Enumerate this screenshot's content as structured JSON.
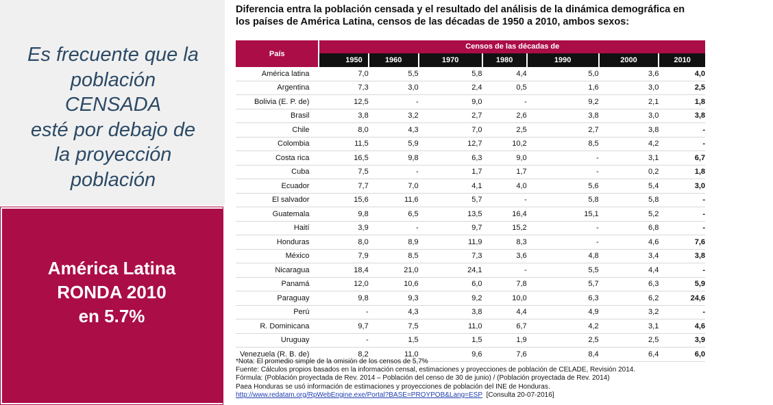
{
  "left_panel": {
    "quote_lines": [
      "Es frecuente que la",
      "población",
      "CENSADA",
      "esté por debajo de",
      "la proyección",
      "población"
    ],
    "callout_lines": [
      "América  Latina",
      "RONDA 2010",
      "en 5.7%"
    ]
  },
  "title_lines": [
    "Diferencia entra la población censada y el resultado del análisis de la dinámica demográfica en",
    "los países de América Latina, censos de las décadas de 1950 a 2010, ambos sexos:"
  ],
  "table": {
    "country_header": "País",
    "span_header": "Censos de las décadas de",
    "years": [
      "1950",
      "1960",
      "1970",
      "1980",
      "1990",
      "2000",
      "2010"
    ],
    "rows": [
      {
        "country": "América latina",
        "values": [
          "7,0",
          "5,5",
          "5,8",
          "4,4",
          "5,0",
          "3,6",
          "4,0"
        ]
      },
      {
        "country": "Argentina",
        "values": [
          "7,3",
          "3,0",
          "2,4",
          "0,5",
          "1,6",
          "3,0",
          "2,5"
        ]
      },
      {
        "country": "Bolivia   (E. P. de)",
        "values": [
          "12,5",
          "-",
          "9,0",
          "-",
          "9,2",
          "2,1",
          "1,8"
        ]
      },
      {
        "country": "Brasil",
        "values": [
          "3,8",
          "3,2",
          "2,7",
          "2,6",
          "3,8",
          "3,0",
          "3,8"
        ]
      },
      {
        "country": "Chile",
        "values": [
          "8,0",
          "4,3",
          "7,0",
          "2,5",
          "2,7",
          "3,8",
          "-"
        ]
      },
      {
        "country": "Colombia",
        "values": [
          "11,5",
          "5,9",
          "12,7",
          "10,2",
          "8,5",
          "4,2",
          "-"
        ]
      },
      {
        "country": "Costa rica",
        "values": [
          "16,5",
          "9,8",
          "6,3",
          "9,0",
          "-",
          "3,1",
          "6,7"
        ]
      },
      {
        "country": "Cuba",
        "values": [
          "7,5",
          "-",
          "1,7",
          "1,7",
          "-",
          "0,2",
          "1,8"
        ]
      },
      {
        "country": "Ecuador",
        "values": [
          "7,7",
          "7,0",
          "4,1",
          "4,0",
          "5,6",
          "5,4",
          "3,0"
        ]
      },
      {
        "country": "El salvador",
        "values": [
          "15,6",
          "11,6",
          "5,7",
          "-",
          "5,8",
          "5,8",
          "-"
        ]
      },
      {
        "country": "Guatemala",
        "values": [
          "9,8",
          "6,5",
          "13,5",
          "16,4",
          "15,1",
          "5,2",
          "-"
        ]
      },
      {
        "country": "Haití",
        "values": [
          "3,9",
          "-",
          "9,7",
          "15,2",
          "-",
          "6,8",
          "-"
        ]
      },
      {
        "country": "Honduras",
        "values": [
          "8,0",
          "8,9",
          "11,9",
          "8,3",
          "-",
          "4,6",
          "7,6"
        ]
      },
      {
        "country": "México",
        "values": [
          "7,9",
          "8,5",
          "7,3",
          "3,6",
          "4,8",
          "3,4",
          "3,8"
        ]
      },
      {
        "country": "Nicaragua",
        "values": [
          "18,4",
          "21,0",
          "24,1",
          "-",
          "5,5",
          "4,4",
          "-"
        ]
      },
      {
        "country": "Panamá",
        "values": [
          "12,0",
          "10,6",
          "6,0",
          "7,8",
          "5,7",
          "6,3",
          "5,9"
        ]
      },
      {
        "country": "Paraguay",
        "values": [
          "9,8",
          "9,3",
          "9,2",
          "10,0",
          "6,3",
          "6,2",
          "24,6"
        ]
      },
      {
        "country": "Perú",
        "values": [
          "-",
          "4,3",
          "3,8",
          "4,4",
          "4,9",
          "3,2",
          "-"
        ]
      },
      {
        "country": "R. Dominicana",
        "values": [
          "9,7",
          "7,5",
          "11,0",
          "6,7",
          "4,2",
          "3,1",
          "4,6"
        ]
      },
      {
        "country": "Uruguay",
        "values": [
          "-",
          "1,5",
          "1,5",
          "1,9",
          "2,5",
          "2,5",
          "3,9"
        ]
      },
      {
        "country": "Venezuela (R. B. de)",
        "values": [
          "8,2",
          "11,0",
          "9,6",
          "7,6",
          "8,4",
          "6,4",
          "6,0"
        ]
      }
    ]
  },
  "notes": {
    "nota": "*Nota: El promedio simple de la omisión de los censos de 5,7%",
    "fuente": "Fuente: Cálculos propios basados en la información censal, estimaciones y proyecciones de población de CELADE, Revisión 2014.",
    "formula": "Fórmula: (Población proyectada de Rev. 2014 – Población del censo de 30 de junio) / (Población proyectada de Rev. 2014)",
    "honduras": "Paea Honduras se usó información de estimaciones y proyecciones de población del INE de Honduras.",
    "link": "http://www.redatam.org/RpWebEngine.exe/Portal?BASE=PROYPOB&Lang=ESP",
    "consulta": "[Consulta 20-07-2016]"
  },
  "colors": {
    "accent": "#ab0d47",
    "quote_text": "#2c4a66",
    "panel_gray": "#f0f0f0"
  }
}
